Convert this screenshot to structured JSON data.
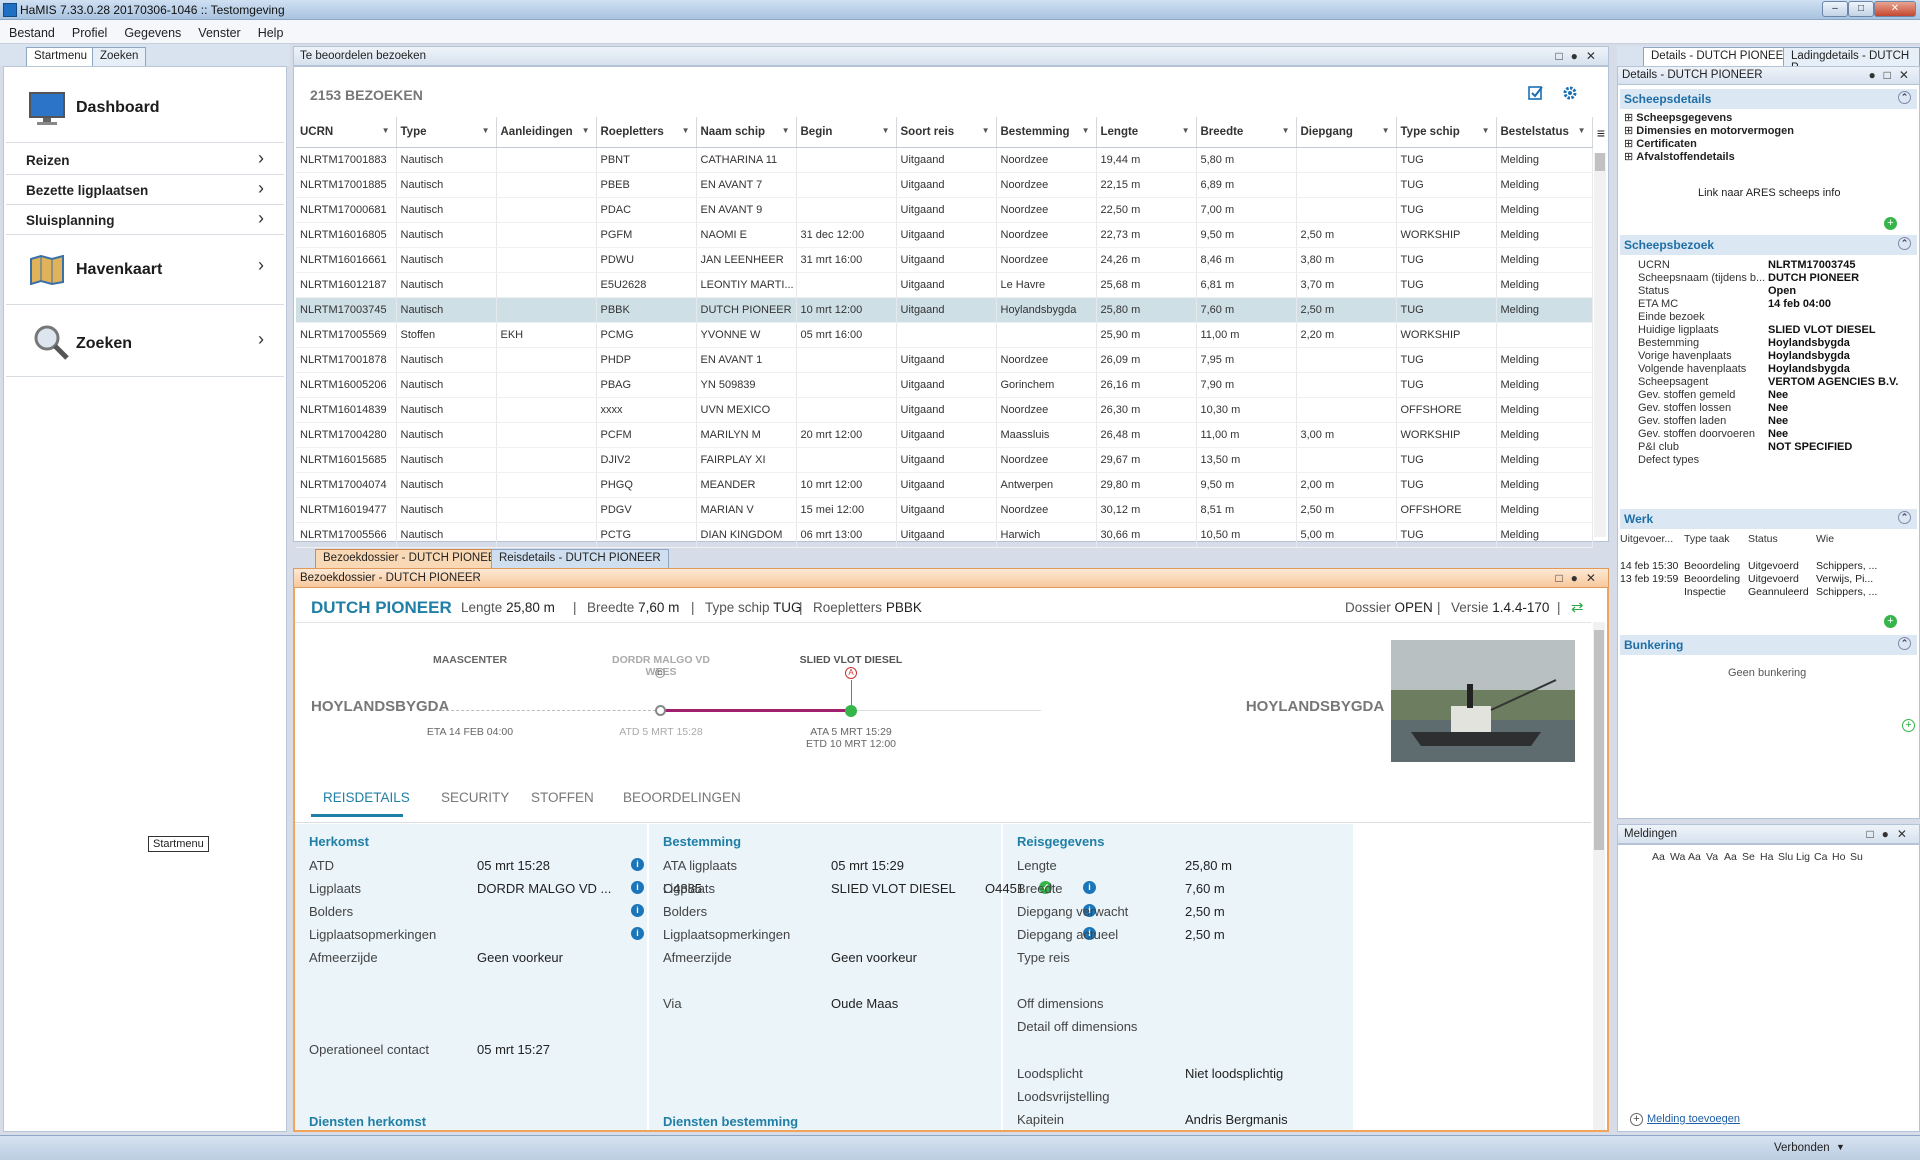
{
  "window": {
    "title": "HaMIS 7.33.0.28 20170306-1046 :: Testomgeving"
  },
  "menu": [
    "Bestand",
    "Profiel",
    "Gegevens",
    "Venster",
    "Help"
  ],
  "left": {
    "tabs": [
      "Startmenu",
      "Zoeken"
    ],
    "items": {
      "dashboard": "Dashboard",
      "reizen": "Reizen",
      "bezette": "Bezette ligplaatsen",
      "sluis": "Sluisplanning",
      "havenkaart": "Havenkaart",
      "zoeken": "Zoeken"
    },
    "tooltip": "Startmenu"
  },
  "grid": {
    "panel_title": "Te beoordelen bezoeken",
    "count": "2153 BEZOEKEN",
    "columns": [
      "UCRN",
      "Type",
      "Aanleidingen",
      "Roepletters",
      "Naam schip",
      "Begin",
      "Soort reis",
      "Bestemming",
      "Lengte",
      "Breedte",
      "Diepgang",
      "Type schip",
      "Bestelstatus"
    ],
    "rows": [
      [
        "NLRTM17001883",
        "Nautisch",
        "",
        "PBNT",
        "CATHARINA 11",
        "",
        "Uitgaand",
        "Noordzee",
        "19,44 m",
        "5,80 m",
        "",
        "TUG",
        "Melding"
      ],
      [
        "NLRTM17001885",
        "Nautisch",
        "",
        "PBEB",
        "EN AVANT 7",
        "",
        "Uitgaand",
        "Noordzee",
        "22,15 m",
        "6,89 m",
        "",
        "TUG",
        "Melding"
      ],
      [
        "NLRTM17000681",
        "Nautisch",
        "",
        "PDAC",
        "EN AVANT 9",
        "",
        "Uitgaand",
        "Noordzee",
        "22,50 m",
        "7,00 m",
        "",
        "TUG",
        "Melding"
      ],
      [
        "NLRTM16016805",
        "Nautisch",
        "",
        "PGFM",
        "NAOMI E",
        "31 dec 12:00",
        "Uitgaand",
        "Noordzee",
        "22,73 m",
        "9,50 m",
        "2,50 m",
        "WORKSHIP",
        "Melding"
      ],
      [
        "NLRTM16016661",
        "Nautisch",
        "",
        "PDWU",
        "JAN LEENHEER",
        "31 mrt 16:00",
        "Uitgaand",
        "Noordzee",
        "24,26 m",
        "8,46 m",
        "3,80 m",
        "TUG",
        "Melding"
      ],
      [
        "NLRTM16012187",
        "Nautisch",
        "",
        "E5U2628",
        "LEONTIY MARTI...",
        "",
        "Uitgaand",
        "Le Havre",
        "25,68 m",
        "6,81 m",
        "3,70 m",
        "TUG",
        "Melding"
      ],
      [
        "NLRTM17003745",
        "Nautisch",
        "",
        "PBBK",
        "DUTCH PIONEER",
        "10 mrt 12:00",
        "Uitgaand",
        "Hoylandsbygda",
        "25,80 m",
        "7,60 m",
        "2,50 m",
        "TUG",
        "Melding"
      ],
      [
        "NLRTM17005569",
        "Stoffen",
        "EKH",
        "PCMG",
        "YVONNE W",
        "05 mrt 16:00",
        "",
        "",
        "25,90 m",
        "11,00 m",
        "2,20 m",
        "WORKSHIP",
        ""
      ],
      [
        "NLRTM17001878",
        "Nautisch",
        "",
        "PHDP",
        "EN AVANT 1",
        "",
        "Uitgaand",
        "Noordzee",
        "26,09 m",
        "7,95 m",
        "",
        "TUG",
        "Melding"
      ],
      [
        "NLRTM16005206",
        "Nautisch",
        "",
        "PBAG",
        "YN 509839",
        "",
        "Uitgaand",
        "Gorinchem",
        "26,16 m",
        "7,90 m",
        "",
        "TUG",
        "Melding"
      ],
      [
        "NLRTM16014839",
        "Nautisch",
        "",
        "xxxx",
        "UVN MEXICO",
        "",
        "Uitgaand",
        "Noordzee",
        "26,30 m",
        "10,30 m",
        "",
        "OFFSHORE",
        "Melding"
      ],
      [
        "NLRTM17004280",
        "Nautisch",
        "",
        "PCFM",
        "MARILYN M",
        "20 mrt 12:00",
        "Uitgaand",
        "Maassluis",
        "26,48 m",
        "11,00 m",
        "3,00 m",
        "WORKSHIP",
        "Melding"
      ],
      [
        "NLRTM16015685",
        "Nautisch",
        "",
        "DJIV2",
        "FAIRPLAY XI",
        "",
        "Uitgaand",
        "Noordzee",
        "29,67 m",
        "13,50 m",
        "",
        "TUG",
        "Melding"
      ],
      [
        "NLRTM17004074",
        "Nautisch",
        "",
        "PHGQ",
        "MEANDER",
        "10 mrt 12:00",
        "Uitgaand",
        "Antwerpen",
        "29,80 m",
        "9,50 m",
        "2,00 m",
        "TUG",
        "Melding"
      ],
      [
        "NLRTM16019477",
        "Nautisch",
        "",
        "PDGV",
        "MARIAN V",
        "15 mei 12:00",
        "Uitgaand",
        "Noordzee",
        "30,12 m",
        "8,51 m",
        "2,50 m",
        "OFFSHORE",
        "Melding"
      ],
      [
        "NLRTM17005566",
        "Nautisch",
        "",
        "PCTG",
        "DIAN KINGDOM",
        "06 mrt 13:00",
        "Uitgaand",
        "Harwich",
        "30,66 m",
        "10,50 m",
        "5,00 m",
        "TUG",
        "Melding"
      ]
    ]
  },
  "doc_tabs": [
    "Bezoekdossier - DUTCH PIONEER",
    "Reisdetails - DUTCH PIONEER"
  ],
  "dossier": {
    "panel_title": "Bezoekdossier - DUTCH PIONEER",
    "ship": "DUTCH PIONEER",
    "lengte_lbl": "Lengte",
    "lengte": "25,80 m",
    "breedte_lbl": "Breedte",
    "breedte": "7,60 m",
    "type_lbl": "Type schip",
    "type": "TUG",
    "roep_lbl": "Roepletters",
    "roep": "PBBK",
    "dossier_lbl": "Dossier",
    "dossier": "OPEN",
    "versie_lbl": "Versie",
    "versie": "1.4.4-170",
    "timeline": {
      "from": "HOYLANDSBYGDA",
      "to": "HOYLANDSBYGDA",
      "p1": "MAASCENTER",
      "p1_sub": "ETA 14 FEB 04:00",
      "p2": "DORDR MALGO VD WEES",
      "p2_badge": "D",
      "p2_sub": "ATD 5 MRT 15:28",
      "p3": "SLIED VLOT DIESEL",
      "p3_badge": "A",
      "p3_sub1": "ATA 5 MRT 15:29",
      "p3_sub2": "ETD 10 MRT 12:00"
    },
    "tabs": [
      "REISDETAILS",
      "SECURITY",
      "STOFFEN",
      "BEOORDELINGEN"
    ],
    "herkomst": {
      "title": "Herkomst",
      "atd_l": "ATD",
      "atd": "05 mrt 15:28",
      "lig_l": "Ligplaats",
      "lig": "DORDR MALGO VD ...",
      "lig_code": "O4885",
      "bold_l": "Bolders",
      "opm_l": "Ligplaatsopmerkingen",
      "afm_l": "Afmeerzijde",
      "afm": "Geen voorkeur",
      "op_l": "Operationeel contact",
      "op": "05 mrt 15:27",
      "diensten": "Diensten herkomst"
    },
    "bestemming": {
      "title": "Bestemming",
      "ata_l": "ATA ligplaats",
      "ata": "05 mrt 15:29",
      "lig_l": "Ligplaats",
      "lig": "SLIED VLOT DIESEL",
      "lig_code": "O4451",
      "bold_l": "Bolders",
      "opm_l": "Ligplaatsopmerkingen",
      "afm_l": "Afmeerzijde",
      "afm": "Geen voorkeur",
      "via_l": "Via",
      "via": "Oude Maas",
      "diensten": "Diensten bestemming"
    },
    "reis": {
      "title": "Reisgegevens",
      "lengte_l": "Lengte",
      "lengte": "25,80 m",
      "breedte_l": "Breedte",
      "breedte": "7,60 m",
      "dv_l": "Diepgang verwacht",
      "dv": "2,50 m",
      "da_l": "Diepgang actueel",
      "da": "2,50 m",
      "tr_l": "Type reis",
      "off_l": "Off dimensions",
      "doff_l": "Detail off dimensions",
      "loods_l": "Loodsplicht",
      "loods": "Niet loodsplichtig",
      "vrij_l": "Loodsvrijstelling",
      "kap_l": "Kapitein",
      "kap": "Andris Bergmanis"
    }
  },
  "right": {
    "tabs": [
      "Details - DUTCH PIONEER",
      "Ladingdetails - DUTCH P..."
    ],
    "panel_title": "Details - DUTCH PIONEER",
    "scheepsdetails": "Scheepsdetails",
    "tree": [
      "Scheepsgegevens",
      "Dimensies en motorvermogen",
      "Certificaten",
      "Afvalstoffendetails"
    ],
    "ares": "Link naar ARES scheeps info",
    "bezoek": "Scheepsbezoek",
    "fields": [
      [
        "UCRN",
        "NLRTM17003745"
      ],
      [
        "Scheepsnaam (tijdens b...",
        "DUTCH PIONEER"
      ],
      [
        "Status",
        "Open"
      ],
      [
        "ETA MC",
        "14 feb 04:00"
      ],
      [
        "Einde bezoek",
        ""
      ],
      [
        "Huidige ligplaats",
        "SLIED VLOT DIESEL"
      ],
      [
        "Bestemming",
        "Hoylandsbygda"
      ],
      [
        "Vorige havenplaats",
        "Hoylandsbygda"
      ],
      [
        "Volgende havenplaats",
        "Hoylandsbygda"
      ],
      [
        "Scheepsagent",
        "VERTOM AGENCIES B.V."
      ],
      [
        "Gev. stoffen gemeld",
        "Nee"
      ],
      [
        "Gev. stoffen lossen",
        "Nee"
      ],
      [
        "Gev. stoffen laden",
        "Nee"
      ],
      [
        "Gev. stoffen doorvoeren",
        "Nee"
      ],
      [
        "P&I club",
        "NOT SPECIFIED"
      ],
      [
        "Defect types",
        ""
      ]
    ],
    "werk": "Werk",
    "werk_cols": [
      "Uitgevoer...",
      "Type taak",
      "Status",
      "Wie"
    ],
    "werk_rows": [
      [
        "14 feb 15:30",
        "Beoordeling",
        "Uitgevoerd",
        "Schippers, ..."
      ],
      [
        "13 feb 19:59",
        "Beoordeling",
        "Uitgevoerd",
        "Verwijs, Pi..."
      ],
      [
        "",
        "Inspectie",
        "Geannuleerd",
        "Schippers, ..."
      ]
    ],
    "bunkering": "Bunkering",
    "bunk_empty": "Geen bunkering",
    "meldingen": "Meldingen",
    "meld_cols": [
      "Aa",
      "Wa",
      "Aa",
      "Va",
      "Aa",
      "Se",
      "Ha",
      "Slu",
      "Lig",
      "Ca",
      "Ho",
      "Su"
    ],
    "meld_add": "Melding toevoegen"
  },
  "status": {
    "verbonden": "Verbonden"
  }
}
